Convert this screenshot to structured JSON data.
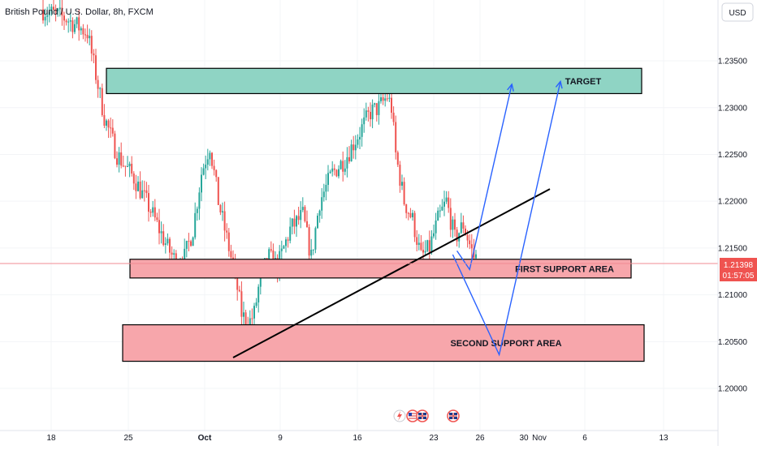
{
  "symbol_title": "British Pound / U.S. Dollar, 8h, FXCM",
  "currency_button": "USD",
  "price_tag": {
    "price": "1.21398",
    "countdown": "01:57:05",
    "value": 1.21398
  },
  "colors": {
    "up": "#26a69a",
    "down": "#ef5350",
    "target_zone": "#8fd4c4",
    "support_zone": "#f7a6ab",
    "arrow": "#2962ff",
    "trendline": "#000000",
    "price_line": "#f28b93"
  },
  "event_icons": [
    "lightning-icon",
    "us-flag-icon",
    "uk-flag-icon",
    "uk-flag-icon"
  ],
  "chart_data": {
    "type": "candlestick",
    "title": "British Pound / U.S. Dollar, 8h, FXCM",
    "y_axis": {
      "ticks": [
        "1.23500",
        "1.23000",
        "1.22500",
        "1.22000",
        "1.21500",
        "1.21000",
        "1.20500",
        "1.20000"
      ],
      "range": [
        1.1955,
        1.2415
      ]
    },
    "x_axis": {
      "ticks": [
        "18",
        "25",
        "Oct",
        "9",
        "16",
        "23",
        "26",
        "30",
        "Nov",
        "6",
        "13"
      ]
    },
    "price_path": [
      [
        0,
        1.2405
      ],
      [
        12,
        1.2395
      ],
      [
        22,
        1.238
      ],
      [
        30,
        1.229
      ],
      [
        36,
        1.225
      ],
      [
        44,
        1.2225
      ],
      [
        52,
        1.219
      ],
      [
        60,
        1.215
      ],
      [
        64,
        1.2135
      ],
      [
        68,
        1.214
      ],
      [
        72,
        1.217
      ],
      [
        76,
        1.223
      ],
      [
        80,
        1.226
      ],
      [
        84,
        1.22
      ],
      [
        88,
        1.216
      ],
      [
        92,
        1.212
      ],
      [
        95,
        1.208
      ],
      [
        98,
        1.2068
      ],
      [
        101,
        1.208
      ],
      [
        104,
        1.212
      ],
      [
        108,
        1.214
      ],
      [
        112,
        1.213
      ],
      [
        118,
        1.217
      ],
      [
        124,
        1.2185
      ],
      [
        128,
        1.214
      ],
      [
        132,
        1.22
      ],
      [
        138,
        1.223
      ],
      [
        144,
        1.2245
      ],
      [
        150,
        1.227
      ],
      [
        156,
        1.2295
      ],
      [
        160,
        1.23
      ],
      [
        164,
        1.2312
      ],
      [
        166,
        1.23
      ],
      [
        168,
        1.225
      ],
      [
        172,
        1.22
      ],
      [
        176,
        1.218
      ],
      [
        180,
        1.214
      ],
      [
        184,
        1.215
      ],
      [
        188,
        1.218
      ],
      [
        192,
        1.22
      ],
      [
        196,
        1.216
      ],
      [
        200,
        1.2175
      ],
      [
        205,
        1.214
      ]
    ],
    "zones": [
      {
        "label": "TARGET",
        "top": 1.2342,
        "bottom": 1.2315
      },
      {
        "label": "FIRST SUPPORT AREA",
        "top": 1.2138,
        "bottom": 1.2118
      },
      {
        "label": "SECOND SUPPORT AREA",
        "top": 1.2068,
        "bottom": 1.2029
      }
    ],
    "trendline": {
      "from_bar": 90,
      "from_price": 1.2033,
      "to_bar": 240,
      "to_price": 1.2213
    },
    "projections": [
      {
        "points": [
          [
            196,
            1.2147
          ],
          [
            202,
            1.2127
          ],
          [
            222,
            1.2325
          ]
        ]
      },
      {
        "points": [
          [
            194,
            1.2143
          ],
          [
            216,
            1.2036
          ],
          [
            245,
            1.2328
          ]
        ]
      }
    ]
  }
}
